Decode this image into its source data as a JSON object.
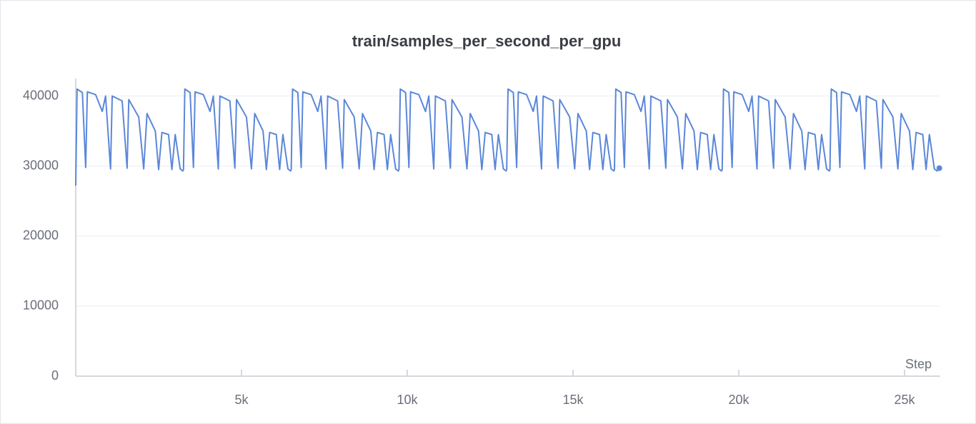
{
  "chart_data": {
    "type": "line",
    "title": "train/samples_per_second_per_gpu",
    "x_label": "Step",
    "xlim": [
      0,
      26100
    ],
    "ylim": [
      0,
      42500
    ],
    "xticks": [
      {
        "value": 5000,
        "label": "5k"
      },
      {
        "value": 10000,
        "label": "10k"
      },
      {
        "value": 15000,
        "label": "15k"
      },
      {
        "value": 20000,
        "label": "20k"
      },
      {
        "value": 25000,
        "label": "25k"
      }
    ],
    "yticks": [
      0,
      10000,
      20000,
      30000,
      40000
    ],
    "grid": true,
    "x": [
      0,
      40,
      200,
      300,
      350,
      600,
      800,
      900,
      1050,
      1100,
      1400,
      1550,
      1600,
      1900,
      2050,
      2150,
      2400,
      2500,
      2600,
      2800,
      2900,
      3000,
      3150,
      3230,
      3250,
      3290,
      3450,
      3550,
      3600,
      3850,
      4050,
      4150,
      4300,
      4350,
      4650,
      4800,
      4850,
      5150,
      5300,
      5400,
      5650,
      5750,
      5850,
      6050,
      6150,
      6250,
      6400,
      6480,
      6500,
      6540,
      6700,
      6800,
      6850,
      7100,
      7300,
      7400,
      7550,
      7600,
      7900,
      8050,
      8100,
      8400,
      8550,
      8650,
      8900,
      9000,
      9100,
      9300,
      9400,
      9500,
      9650,
      9730,
      9750,
      9790,
      9950,
      10050,
      10100,
      10350,
      10550,
      10650,
      10800,
      10850,
      11150,
      11300,
      11350,
      11650,
      11800,
      11900,
      12150,
      12250,
      12350,
      12550,
      12650,
      12750,
      12900,
      12980,
      13000,
      13040,
      13200,
      13300,
      13350,
      13600,
      13800,
      13900,
      14050,
      14100,
      14400,
      14550,
      14600,
      14900,
      15050,
      15150,
      15400,
      15500,
      15600,
      15800,
      15900,
      16000,
      16150,
      16230,
      16250,
      16290,
      16450,
      16550,
      16600,
      16850,
      17050,
      17150,
      17300,
      17350,
      17650,
      17800,
      17850,
      18150,
      18300,
      18400,
      18650,
      18750,
      18850,
      19050,
      19150,
      19250,
      19400,
      19480,
      19500,
      19540,
      19700,
      19800,
      19850,
      20100,
      20300,
      20400,
      20550,
      20600,
      20900,
      21050,
      21100,
      21400,
      21550,
      21650,
      21900,
      22000,
      22100,
      22300,
      22400,
      22500,
      22650,
      22730,
      22750,
      22790,
      22950,
      23050,
      23100,
      23350,
      23550,
      23650,
      23800,
      23850,
      24150,
      24300,
      24350,
      24650,
      24800,
      24900,
      25150,
      25250,
      25350,
      25550,
      25650,
      25750,
      25900,
      25980,
      26050
    ],
    "series": [
      {
        "color": "#5b87d9",
        "values": [
          27200,
          41000,
          40500,
          29800,
          40600,
          40200,
          37800,
          40000,
          29600,
          40000,
          39300,
          29700,
          39500,
          37000,
          29600,
          37500,
          35000,
          29500,
          34800,
          34500,
          29500,
          34500,
          29600,
          29300,
          29500,
          41000,
          40500,
          29800,
          40600,
          40200,
          37800,
          40000,
          29600,
          40000,
          39300,
          29700,
          39500,
          37000,
          29600,
          37500,
          35000,
          29500,
          34800,
          34500,
          29500,
          34500,
          29600,
          29300,
          29500,
          41000,
          40500,
          29800,
          40600,
          40200,
          37800,
          40000,
          29600,
          40000,
          39300,
          29700,
          39500,
          37000,
          29600,
          37500,
          35000,
          29500,
          34800,
          34500,
          29500,
          34500,
          29600,
          29300,
          29500,
          41000,
          40500,
          29800,
          40600,
          40200,
          37800,
          40000,
          29600,
          40000,
          39300,
          29700,
          39500,
          37000,
          29600,
          37500,
          35000,
          29500,
          34800,
          34500,
          29500,
          34500,
          29600,
          29300,
          29500,
          41000,
          40500,
          29800,
          40600,
          40200,
          37800,
          40000,
          29600,
          40000,
          39300,
          29700,
          39500,
          37000,
          29600,
          37500,
          35000,
          29500,
          34800,
          34500,
          29500,
          34500,
          29600,
          29300,
          29500,
          41000,
          40500,
          29800,
          40600,
          40200,
          37800,
          40000,
          29600,
          40000,
          39300,
          29700,
          39500,
          37000,
          29600,
          37500,
          35000,
          29500,
          34800,
          34500,
          29500,
          34500,
          29600,
          29300,
          29500,
          41000,
          40500,
          29800,
          40600,
          40200,
          37800,
          40000,
          29600,
          40000,
          39300,
          29700,
          39500,
          37000,
          29600,
          37500,
          35000,
          29500,
          34800,
          34500,
          29500,
          34500,
          29600,
          29300,
          29500,
          41000,
          40500,
          29800,
          40600,
          40200,
          37800,
          40000,
          29600,
          40000,
          39300,
          29700,
          39500,
          37000,
          29600,
          37500,
          35000,
          29500,
          34800,
          34500,
          29500,
          34500,
          29600,
          29300,
          29700
        ]
      }
    ]
  }
}
